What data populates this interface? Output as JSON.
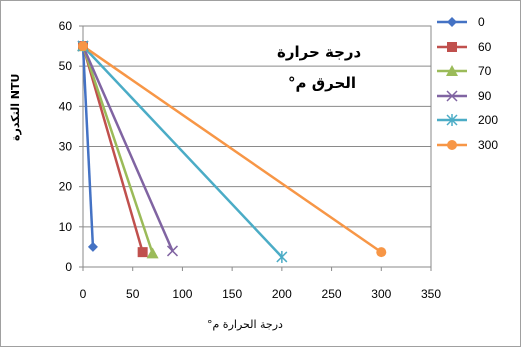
{
  "chart_data": {
    "type": "line",
    "annotation": [
      "درجة حرارة",
      "الحرق م°"
    ],
    "ylabel": "NTU التكدرة",
    "xlabel": "درجة الحرارة م°",
    "xlim": [
      0,
      350
    ],
    "ylim": [
      0,
      60
    ],
    "x_ticks": [
      "0",
      "50",
      "100",
      "150",
      "200",
      "250",
      "300",
      "350"
    ],
    "y_ticks": [
      "0",
      "10",
      "20",
      "30",
      "40",
      "50",
      "60"
    ],
    "grid": "horizontal",
    "legend_position": "right",
    "series": [
      {
        "name": "0",
        "color": "#4472C4",
        "marker": "diamond",
        "points": [
          [
            0,
            55
          ],
          [
            10,
            5
          ]
        ]
      },
      {
        "name": "60",
        "color": "#C0504D",
        "marker": "square",
        "points": [
          [
            0,
            55
          ],
          [
            60,
            3.7
          ]
        ]
      },
      {
        "name": "70",
        "color": "#9BBB59",
        "marker": "triangle",
        "points": [
          [
            0,
            55
          ],
          [
            70,
            3.4
          ]
        ]
      },
      {
        "name": "90",
        "color": "#8064A2",
        "marker": "x",
        "points": [
          [
            0,
            55
          ],
          [
            90,
            4
          ]
        ]
      },
      {
        "name": "200",
        "color": "#4BACC6",
        "marker": "star",
        "points": [
          [
            0,
            55
          ],
          [
            200,
            2.5
          ]
        ]
      },
      {
        "name": "300",
        "color": "#F79646",
        "marker": "circle",
        "points": [
          [
            0,
            55
          ],
          [
            300,
            3.7
          ]
        ]
      }
    ]
  }
}
